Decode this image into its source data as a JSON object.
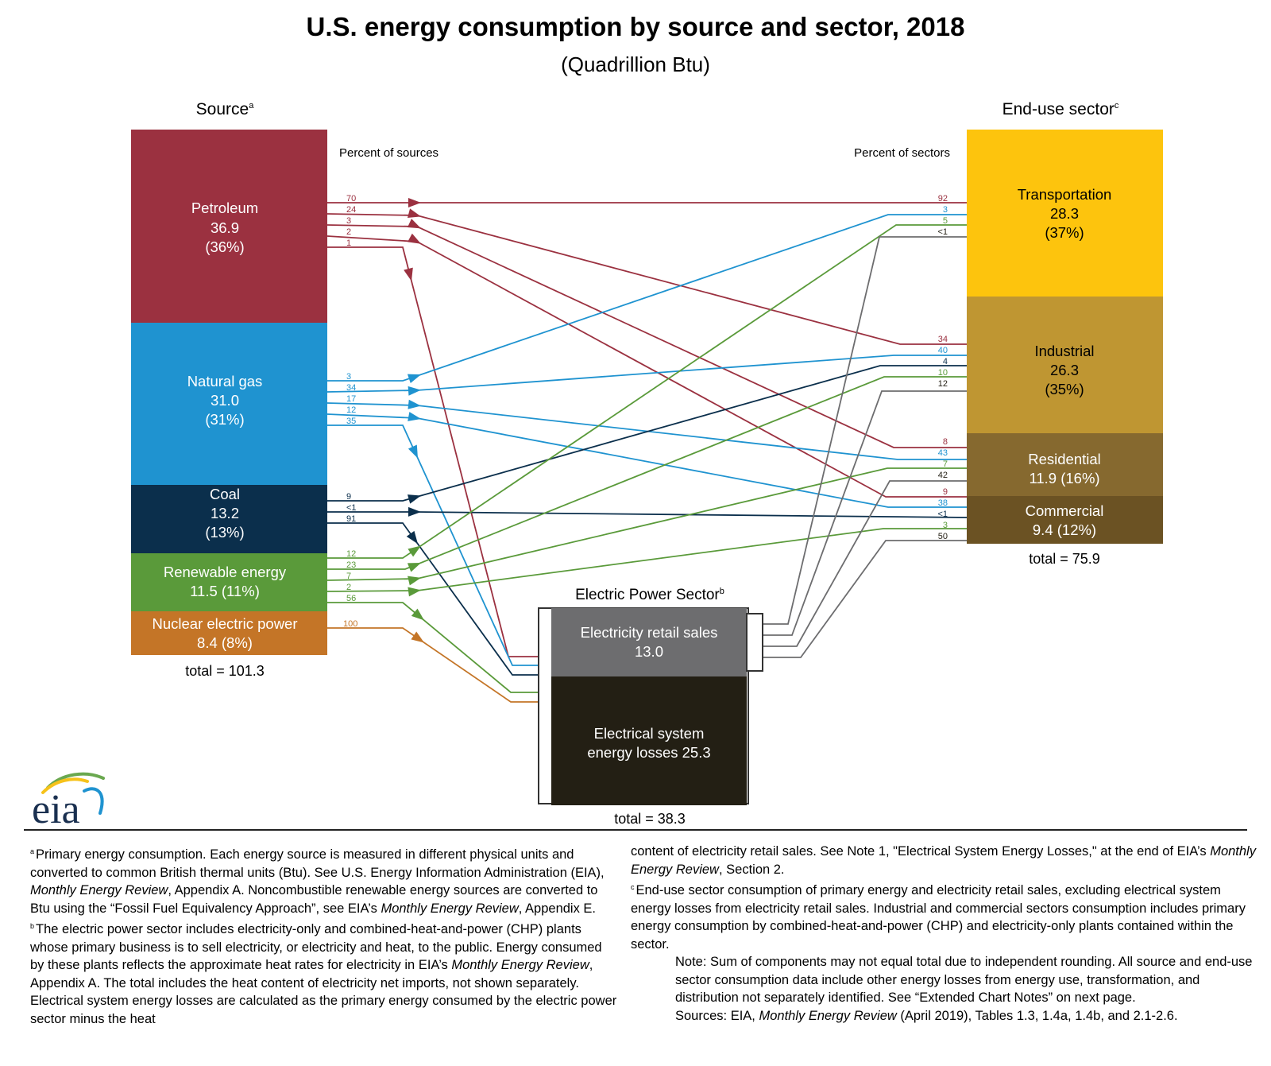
{
  "title": "U.S. energy consumption by source and sector, 2018",
  "subtitle": "(Quadrillion Btu)",
  "sources_heading": "Source",
  "sources_heading_sup": "a",
  "sectors_heading": "End-use sector",
  "sectors_heading_sup": "c",
  "percent_of_sources": "Percent of sources",
  "percent_of_sectors": "Percent of sectors",
  "electric_heading": "Electric Power Sector",
  "electric_heading_sup": "b",
  "colors": {
    "petroleum": "#9b3140",
    "natural_gas": "#1f93d0",
    "coal": "#0b2f4c",
    "renewable": "#5a9a3a",
    "nuclear": "#c47527",
    "transportation": "#fdc40d",
    "industrial": "#bf9632",
    "residential": "#86692f",
    "commercial": "#6b5223",
    "retail": "#6d6d6f",
    "losses": "#231f14",
    "electric_flow": "#6d6d6f"
  },
  "sources": {
    "petroleum": {
      "name": "Petroleum",
      "value": "36.9",
      "pct": "(36%)"
    },
    "natural_gas": {
      "name": "Natural gas",
      "value": "31.0",
      "pct": "(31%)"
    },
    "coal": {
      "name": "Coal",
      "value": "13.2",
      "pct": "(13%)"
    },
    "renewable": {
      "name": "Renewable energy",
      "value_pct": "11.5 (11%)"
    },
    "nuclear": {
      "name": "Nuclear electric power",
      "value_pct": "8.4 (8%)"
    },
    "total": "total = 101.3"
  },
  "sectors": {
    "transportation": {
      "name": "Transportation",
      "value": "28.3",
      "pct": "(37%)"
    },
    "industrial": {
      "name": "Industrial",
      "value": "26.3",
      "pct": "(35%)"
    },
    "residential": {
      "name": "Residential",
      "value_pct": "11.9 (16%)"
    },
    "commercial": {
      "name": "Commercial",
      "value_pct": "9.4 (12%)"
    },
    "total": "total = 75.9"
  },
  "electric": {
    "retail_name": "Electricity retail sales",
    "retail_value": "13.0",
    "losses_line1": "Electrical system",
    "losses_line2": "energy losses  25.3",
    "total": "total = 38.3"
  },
  "chart_data": {
    "type": "sankey",
    "title": "U.S. energy consumption by source and sector, 2018",
    "units": "Quadrillion Btu",
    "flows": [
      {
        "from": "petroleum",
        "to": "transportation",
        "source_label": "70",
        "sector_label": "92"
      },
      {
        "from": "petroleum",
        "to": "industrial",
        "source_label": "24",
        "sector_label": "34"
      },
      {
        "from": "petroleum",
        "to": "residential",
        "source_label": "3",
        "sector_label": "8"
      },
      {
        "from": "petroleum",
        "to": "commercial",
        "source_label": "2",
        "sector_label": "9"
      },
      {
        "from": "petroleum",
        "to": "electric",
        "source_label": "1"
      },
      {
        "from": "natural_gas",
        "to": "transportation",
        "source_label": "3",
        "sector_label": "3"
      },
      {
        "from": "natural_gas",
        "to": "industrial",
        "source_label": "34",
        "sector_label": "40"
      },
      {
        "from": "natural_gas",
        "to": "residential",
        "source_label": "17",
        "sector_label": "43"
      },
      {
        "from": "natural_gas",
        "to": "commercial",
        "source_label": "12",
        "sector_label": "38"
      },
      {
        "from": "natural_gas",
        "to": "electric",
        "source_label": "35"
      },
      {
        "from": "coal",
        "to": "industrial",
        "source_label": "9",
        "sector_label": "4"
      },
      {
        "from": "coal",
        "to": "commercial",
        "source_label": "<1",
        "sector_label": "<1"
      },
      {
        "from": "coal",
        "to": "electric",
        "source_label": "91"
      },
      {
        "from": "renewable",
        "to": "transportation",
        "source_label": "12",
        "sector_label": "5"
      },
      {
        "from": "renewable",
        "to": "industrial",
        "source_label": "23",
        "sector_label": "10"
      },
      {
        "from": "renewable",
        "to": "residential",
        "source_label": "7",
        "sector_label": "7"
      },
      {
        "from": "renewable",
        "to": "commercial",
        "source_label": "2",
        "sector_label": "3"
      },
      {
        "from": "renewable",
        "to": "electric",
        "source_label": "56"
      },
      {
        "from": "nuclear",
        "to": "electric",
        "source_label": "100"
      },
      {
        "from": "electric",
        "to": "transportation",
        "sector_label": "<1"
      },
      {
        "from": "electric",
        "to": "industrial",
        "sector_label": "12"
      },
      {
        "from": "electric",
        "to": "residential",
        "sector_label": "42"
      },
      {
        "from": "electric",
        "to": "commercial",
        "sector_label": "50"
      }
    ]
  },
  "notes": {
    "a_sup": "a",
    "a_pre1": "Primary energy consumption. Each energy source is measured in different physical units and converted to common British thermal units (Btu). See U.S. Energy Information Administration (EIA), ",
    "a_ital1": "Monthly Energy Review",
    "a_pre2": ", Appendix A. Noncombustible renewable energy sources are converted to Btu using the “Fossil Fuel Equivalency Approach”, see EIA’s ",
    "a_ital2": "Monthly Energy Review",
    "a_post": ", Appendix E.",
    "b_sup": "b",
    "b_pre": "The electric power sector includes electricity-only and combined-heat-and-power (CHP) plants whose primary business is to sell electricity, or electricity and heat, to the public. Energy consumed by these plants reflects the approximate heat rates for electricity in EIA’s ",
    "b_ital": "Monthly Energy Review",
    "b_post": ", Appendix A. The total includes the heat content of electricity net imports, not shown separately. Electrical system energy losses are calculated as the primary energy consumed by the electric power sector minus the heat",
    "b_cont_pre": "content of electricity retail sales. See Note 1, \"Electrical System Energy Losses,\" at the end of EIA’s ",
    "b_cont_ital": "Monthly Energy Review",
    "b_cont_post": ", Section 2.",
    "c_sup": "c",
    "c_text": "End-use sector consumption of primary energy and electricity retail sales, excluding electrical system energy losses from electricity retail sales. Industrial and commercial sectors consumption includes primary energy consumption by combined-heat-and-power (CHP) and electricity-only plants contained within the sector.",
    "note_text": "Note: Sum of components may not equal total due to independent rounding. All source and end-use sector consumption data include other energy losses from energy use, transformation, and distribution not separately identified. See “Extended Chart Notes” on next page.",
    "sources_pre": "Sources: EIA, ",
    "sources_ital": "Monthly Energy Review",
    "sources_post": " (April 2019), Tables 1.3, 1.4a, 1.4b, and 2.1-2.6."
  },
  "logo_text": "eia"
}
